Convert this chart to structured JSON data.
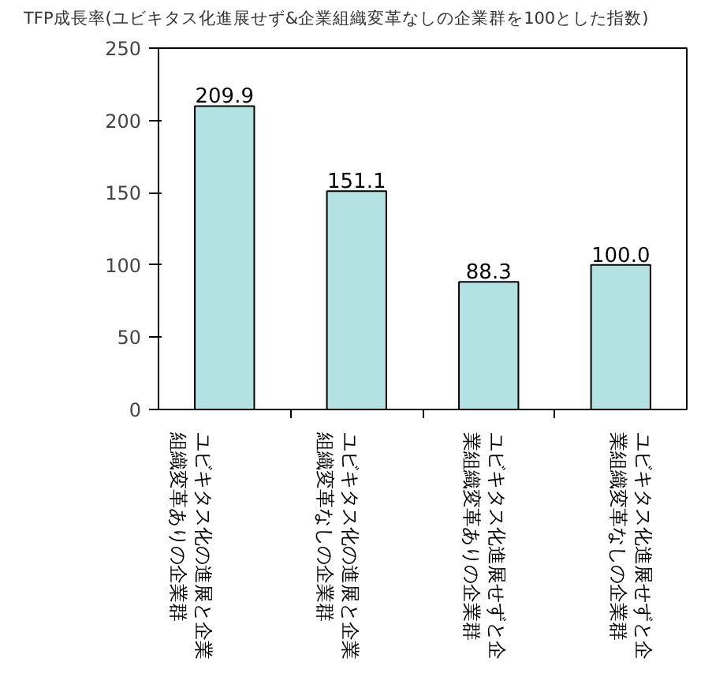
{
  "chart_data": {
    "type": "bar",
    "title": "TFP成長率(ユビキタス化進展せず&企業組織変革なしの企業群を100とした指数)",
    "categories": [
      "ユビキタス化の進展と企業組織変革ありの企業群",
      "ユビキタス化の進展と企業組織変革なしの企業群",
      "ユビキタス化進展せずと企業組織変革ありの企業群",
      "ユビキタス化進展せずと企業組織変革なしの企業群"
    ],
    "values": [
      209.9,
      151.1,
      88.3,
      100.0
    ],
    "value_labels": [
      "209.9",
      "151.1",
      "88.3",
      "100.0"
    ],
    "color": "#b2e2e2",
    "ylim": [
      0,
      250
    ],
    "yticks": [
      0,
      50,
      100,
      150,
      200,
      250
    ],
    "grid": false
  }
}
